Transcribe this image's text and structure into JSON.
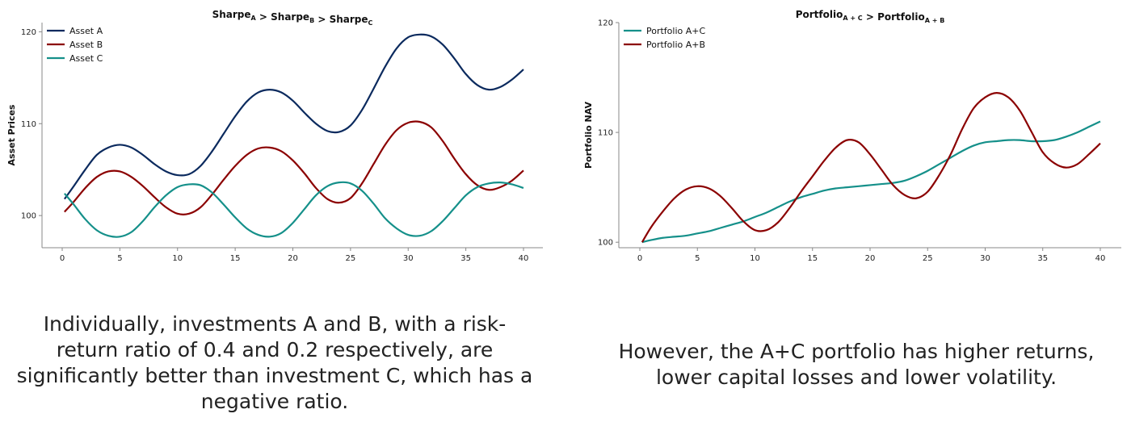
{
  "colors": {
    "navy": "#0b2a5e",
    "crimson": "#8b0000",
    "teal": "#15908a"
  },
  "chart_data": [
    {
      "type": "line",
      "title_main": "Sharpe",
      "title_parts": [
        {
          "text": "Sharpe",
          "sub": "A"
        },
        {
          "text": " > Sharpe",
          "sub": "B"
        },
        {
          "text": " > Sharpe",
          "sub": "C"
        }
      ],
      "ylabel": "Asset Prices",
      "xlabel": "",
      "xlim": [
        0,
        40
      ],
      "ylim": [
        96.5,
        121
      ],
      "xticks": [
        0,
        5,
        10,
        15,
        20,
        25,
        30,
        35,
        40
      ],
      "yticks": [
        100,
        110,
        120
      ],
      "legend_position": "top-left",
      "grid": false,
      "series": [
        {
          "name": "Asset A",
          "color": "#0b2a5e",
          "x": [
            0.2,
            1,
            2,
            3,
            4,
            5,
            6,
            7,
            8,
            9,
            10,
            11,
            12,
            13,
            14,
            15,
            16,
            17,
            18,
            19,
            20,
            21,
            22,
            23,
            24,
            25,
            26,
            27,
            28,
            29,
            30,
            31,
            32,
            33,
            34,
            35,
            36,
            37,
            38,
            39,
            40
          ],
          "y": [
            101.8,
            103.2,
            105.0,
            106.6,
            107.4,
            107.7,
            107.4,
            106.6,
            105.6,
            104.8,
            104.4,
            104.5,
            105.4,
            107.0,
            108.9,
            110.8,
            112.4,
            113.4,
            113.7,
            113.4,
            112.5,
            111.2,
            110.0,
            109.2,
            109.1,
            109.8,
            111.5,
            113.8,
            116.2,
            118.2,
            119.4,
            119.7,
            119.5,
            118.6,
            117.1,
            115.4,
            114.2,
            113.7,
            114.0,
            114.8,
            115.9
          ]
        },
        {
          "name": "Asset B",
          "color": "#8b0000",
          "x": [
            0.2,
            1,
            2,
            3,
            4,
            5,
            6,
            7,
            8,
            9,
            10,
            11,
            12,
            13,
            14,
            15,
            16,
            17,
            18,
            19,
            20,
            21,
            22,
            23,
            24,
            25,
            26,
            27,
            28,
            29,
            30,
            31,
            32,
            33,
            34,
            35,
            36,
            37,
            38,
            39,
            40
          ],
          "y": [
            100.4,
            101.5,
            103.0,
            104.2,
            104.8,
            104.8,
            104.2,
            103.2,
            102.0,
            100.9,
            100.2,
            100.2,
            100.9,
            102.3,
            103.9,
            105.4,
            106.6,
            107.3,
            107.4,
            107.0,
            106.0,
            104.6,
            103.0,
            101.8,
            101.4,
            101.9,
            103.5,
            105.6,
            107.7,
            109.3,
            110.1,
            110.2,
            109.6,
            108.1,
            106.2,
            104.5,
            103.3,
            102.8,
            103.1,
            103.8,
            104.9
          ]
        },
        {
          "name": "Asset C",
          "color": "#15908a",
          "x": [
            0.2,
            1,
            2,
            3,
            4,
            5,
            6,
            7,
            8,
            9,
            10,
            11,
            12,
            13,
            14,
            15,
            16,
            17,
            18,
            19,
            20,
            21,
            22,
            23,
            24,
            25,
            26,
            27,
            28,
            29,
            30,
            31,
            32,
            33,
            34,
            35,
            36,
            37,
            38,
            39,
            40
          ],
          "y": [
            102.4,
            101.2,
            99.6,
            98.4,
            97.8,
            97.7,
            98.2,
            99.4,
            100.9,
            102.2,
            103.1,
            103.4,
            103.3,
            102.5,
            101.2,
            99.8,
            98.6,
            97.9,
            97.7,
            98.1,
            99.2,
            100.7,
            102.2,
            103.2,
            103.6,
            103.5,
            102.7,
            101.3,
            99.7,
            98.6,
            97.9,
            97.8,
            98.3,
            99.4,
            100.8,
            102.2,
            103.1,
            103.5,
            103.6,
            103.4,
            103.0
          ]
        }
      ]
    },
    {
      "type": "line",
      "title_parts": [
        {
          "text": "Portfolio",
          "sub": "A + C"
        },
        {
          "text": " > Portfolio",
          "sub": "A + B"
        }
      ],
      "ylabel": "Portfolio NAV",
      "xlabel": "",
      "xlim": [
        0,
        40
      ],
      "ylim": [
        99.5,
        120
      ],
      "xticks": [
        0,
        5,
        10,
        15,
        20,
        25,
        30,
        35,
        40
      ],
      "yticks": [
        100,
        110,
        120
      ],
      "legend_position": "top-left",
      "grid": false,
      "series": [
        {
          "name": "Portfolio A+C",
          "color": "#15908a",
          "x": [
            0.2,
            1,
            2,
            3,
            4,
            5,
            6,
            7,
            8,
            9,
            10,
            11,
            12,
            13,
            14,
            15,
            16,
            17,
            18,
            19,
            20,
            21,
            22,
            23,
            24,
            25,
            26,
            27,
            28,
            29,
            30,
            31,
            32,
            33,
            34,
            35,
            36,
            37,
            38,
            39,
            40
          ],
          "y": [
            100.0,
            100.2,
            100.4,
            100.5,
            100.6,
            100.8,
            101.0,
            101.3,
            101.6,
            101.9,
            102.3,
            102.7,
            103.2,
            103.7,
            104.1,
            104.4,
            104.7,
            104.9,
            105.0,
            105.1,
            105.2,
            105.3,
            105.4,
            105.6,
            106.0,
            106.5,
            107.1,
            107.7,
            108.3,
            108.8,
            109.1,
            109.2,
            109.3,
            109.3,
            109.2,
            109.2,
            109.3,
            109.6,
            110.0,
            110.5,
            111.0
          ]
        },
        {
          "name": "Portfolio A+B",
          "color": "#8b0000",
          "x": [
            0.2,
            1,
            2,
            3,
            4,
            5,
            6,
            7,
            8,
            9,
            10,
            11,
            12,
            13,
            14,
            15,
            16,
            17,
            18,
            19,
            20,
            21,
            22,
            23,
            24,
            25,
            26,
            27,
            28,
            29,
            30,
            31,
            32,
            33,
            34,
            35,
            36,
            37,
            38,
            39,
            40
          ],
          "y": [
            100.0,
            101.4,
            102.8,
            104.0,
            104.8,
            105.1,
            104.9,
            104.2,
            103.1,
            101.9,
            101.1,
            101.1,
            101.8,
            103.1,
            104.6,
            106.0,
            107.4,
            108.6,
            109.3,
            109.1,
            108.0,
            106.6,
            105.2,
            104.3,
            104.0,
            104.6,
            106.1,
            108.0,
            110.3,
            112.2,
            113.2,
            113.6,
            113.2,
            112.0,
            110.1,
            108.2,
            107.2,
            106.8,
            107.1,
            108.0,
            109.0
          ]
        }
      ]
    }
  ],
  "captions": {
    "left": "Individually, investments A and B, with a risk-return ratio of 0.4 and 0.2 respectively, are significantly better than investment C, which has a negative ratio.",
    "right": "However, the A+C portfolio has higher returns, lower capital losses and lower volatility."
  }
}
